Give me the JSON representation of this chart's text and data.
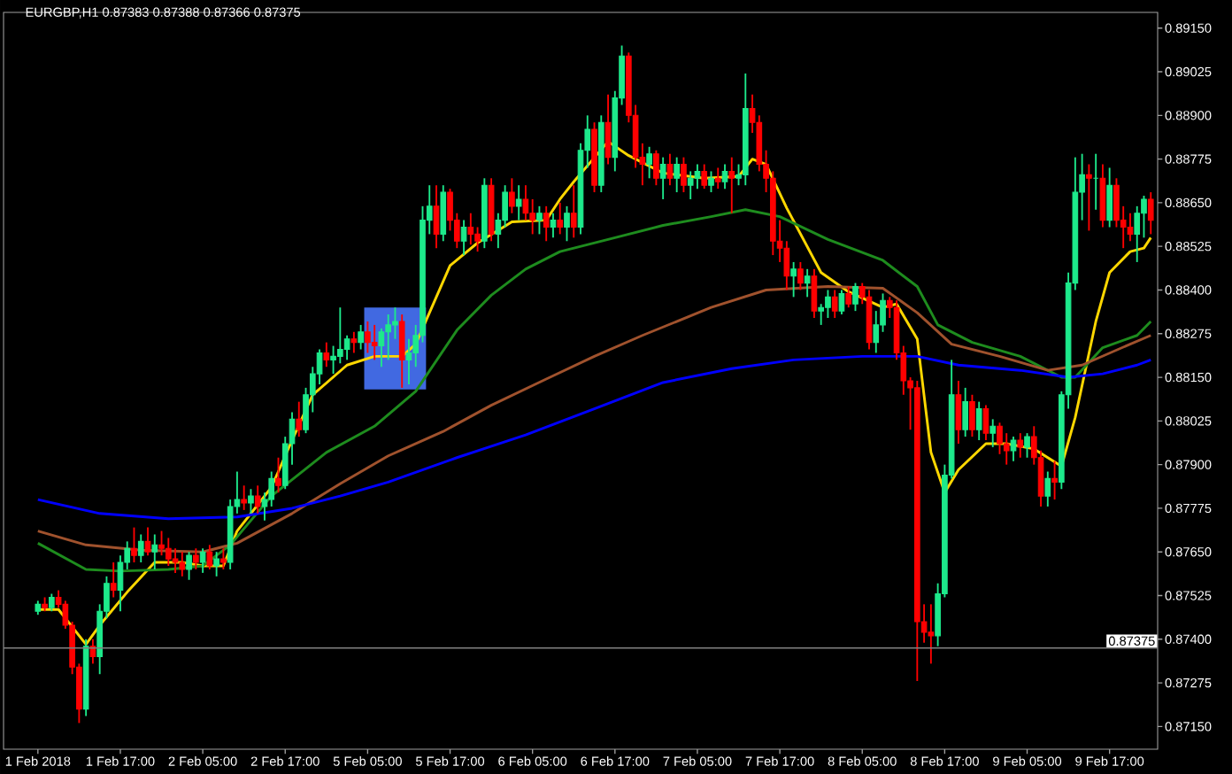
{
  "chart_data": {
    "type": "candlestick",
    "title": "EURGBP,H1  0.87383 0.87388 0.87366 0.87375",
    "categories": [
      "1 Feb 2018",
      null,
      null,
      null,
      null,
      null,
      null,
      null,
      null,
      null,
      null,
      null,
      "1 Feb 17:00",
      null,
      null,
      null,
      null,
      null,
      null,
      null,
      null,
      null,
      null,
      null,
      "2 Feb 05:00",
      null,
      null,
      null,
      null,
      null,
      null,
      null,
      null,
      null,
      null,
      null,
      "2 Feb 17:00",
      null,
      null,
      null,
      null,
      null,
      null,
      null,
      null,
      null,
      null,
      null,
      "5 Feb 05:00",
      null,
      null,
      null,
      null,
      null,
      null,
      null,
      null,
      null,
      null,
      null,
      "5 Feb 17:00",
      null,
      null,
      null,
      null,
      null,
      null,
      null,
      null,
      null,
      null,
      null,
      "6 Feb 05:00",
      null,
      null,
      null,
      null,
      null,
      null,
      null,
      null,
      null,
      null,
      null,
      "6 Feb 17:00",
      null,
      null,
      null,
      null,
      null,
      null,
      null,
      null,
      null,
      null,
      null,
      "7 Feb 05:00",
      null,
      null,
      null,
      null,
      null,
      null,
      null,
      null,
      null,
      null,
      null,
      "7 Feb 17:00",
      null,
      null,
      null,
      null,
      null,
      null,
      null,
      null,
      null,
      null,
      null,
      "8 Feb 05:00",
      null,
      null,
      null,
      null,
      null,
      null,
      null,
      null,
      null,
      null,
      null,
      "8 Feb 17:00",
      null,
      null,
      null,
      null,
      null,
      null,
      null,
      null,
      null,
      null,
      null,
      "9 Feb 05:00",
      null,
      null,
      null,
      null,
      null,
      null,
      null,
      null,
      null,
      null,
      null,
      "9 Feb 17:00",
      null,
      null,
      null,
      null,
      null,
      null
    ],
    "colors": [
      "#1de98b",
      "#ff0000",
      "#1de98b",
      "#ff0000",
      "#ff0000",
      "#ff0000",
      "#ff0000",
      "#1de98b",
      "#ff0000",
      "#1de98b",
      "#1de98b",
      "#ff0000",
      "#1de98b",
      "#1de98b",
      "#ff0000",
      "#1de98b",
      "#ff0000",
      "#1de98b",
      "#ff0000",
      "#ff0000",
      "#ff0000",
      "#ff0000",
      "#1de98b",
      "#ff0000",
      "#1de98b",
      "#ff0000",
      "#1de98b",
      "#ff0000",
      "#1de98b",
      "#1de98b",
      "#ff0000",
      "#1de98b",
      "#ff0000",
      "#1de98b",
      "#1de98b",
      "#ff0000",
      "#1de98b",
      "#1de98b",
      "#ff0000",
      "#1de98b",
      "#1de98b",
      "#1de98b",
      "#ff0000",
      "#1de98b",
      "#1de98b",
      "#1de98b",
      "#ff0000",
      "#1de98b",
      "#ff0000",
      "#ff0000",
      "#1de98b",
      "#1de98b",
      "#1de98b",
      "#ff0000",
      "#1de98b",
      "#1de98b",
      "#1de98b",
      "#1de98b",
      "#ff0000",
      "#1de98b",
      "#ff0000",
      "#ff0000",
      "#1de98b",
      "#ff0000",
      "#ff0000",
      "#1de98b",
      "#ff0000",
      "#1de98b",
      "#1de98b",
      "#ff0000",
      "#1de98b",
      "#ff0000",
      "#ff0000",
      "#1de98b",
      "#ff0000",
      "#1de98b",
      "#ff0000",
      "#1de98b",
      "#ff0000",
      "#1de98b",
      "#1de98b",
      "#ff0000",
      "#1de98b",
      "#ff0000",
      "#1de98b",
      "#1de98b",
      "#ff0000",
      "#ff0000",
      "#ff0000",
      "#1de98b",
      "#ff0000",
      "#1de98b",
      "#ff0000",
      "#1de98b",
      "#ff0000",
      "#1de98b",
      "#1de98b",
      "#ff0000",
      "#1de98b",
      "#ff0000",
      "#1de98b",
      "#ff0000",
      "#1de98b",
      "#1de98b",
      "#ff0000",
      "#ff0000",
      "#ff0000",
      "#ff0000",
      "#ff0000",
      "#ff0000",
      "#1de98b",
      "#ff0000",
      "#1de98b",
      "#ff0000",
      "#1de98b",
      "#1de98b",
      "#ff0000",
      "#1de98b",
      "#ff0000",
      "#1de98b",
      "#ff0000",
      "#ff0000",
      "#1de98b",
      "#1de98b",
      "#ff0000",
      "#ff0000",
      "#ff0000",
      "#ff0000",
      "#ff0000",
      "#ff0000",
      "#ff0000",
      "#1de98b",
      "#1de98b",
      "#1de98b",
      "#ff0000",
      "#1de98b",
      "#ff0000",
      "#1de98b",
      "#ff0000",
      "#1de98b",
      "#ff0000",
      "#ff0000",
      "#1de98b",
      "#ff0000",
      "#1de98b",
      "#ff0000",
      "#ff0000",
      "#1de98b",
      "#ff0000",
      "#1de98b",
      "#1de98b",
      "#1de98b",
      "#1de98b",
      "#ff0000",
      "#1de98b",
      "#ff0000",
      "#1de98b",
      "#ff0000",
      "#ff0000",
      "#ff0000",
      "#1de98b",
      "#1de98b",
      "#ff0000"
    ],
    "ohlc": [
      [
        0.8748,
        0.8751,
        0.8747,
        0.875
      ],
      [
        0.875,
        0.8752,
        0.8748,
        0.8749
      ],
      [
        0.8749,
        0.8753,
        0.8748,
        0.8752
      ],
      [
        0.8752,
        0.8754,
        0.8749,
        0.875
      ],
      [
        0.875,
        0.8751,
        0.8743,
        0.8744
      ],
      [
        0.8744,
        0.8745,
        0.873,
        0.8732
      ],
      [
        0.8732,
        0.8733,
        0.8716,
        0.872
      ],
      [
        0.872,
        0.874,
        0.8718,
        0.8738
      ],
      [
        0.8738,
        0.874,
        0.8733,
        0.8735
      ],
      [
        0.8735,
        0.875,
        0.873,
        0.8748
      ],
      [
        0.8748,
        0.8758,
        0.8746,
        0.8756
      ],
      [
        0.8756,
        0.8762,
        0.8752,
        0.8754
      ],
      [
        0.8754,
        0.8764,
        0.8748,
        0.8762
      ],
      [
        0.8762,
        0.8768,
        0.876,
        0.8766
      ],
      [
        0.8766,
        0.8772,
        0.8762,
        0.8764
      ],
      [
        0.8764,
        0.877,
        0.8762,
        0.8768
      ],
      [
        0.8768,
        0.8772,
        0.8764,
        0.8765
      ],
      [
        0.8765,
        0.877,
        0.876,
        0.8767
      ],
      [
        0.8767,
        0.8771,
        0.8764,
        0.8766
      ],
      [
        0.8766,
        0.8769,
        0.8761,
        0.8763
      ],
      [
        0.8763,
        0.8766,
        0.8759,
        0.8762
      ],
      [
        0.8762,
        0.8765,
        0.8758,
        0.876
      ],
      [
        0.876,
        0.8765,
        0.8757,
        0.8764
      ],
      [
        0.8764,
        0.8766,
        0.876,
        0.8762
      ],
      [
        0.8762,
        0.8766,
        0.8759,
        0.8765
      ],
      [
        0.8765,
        0.8767,
        0.876,
        0.8761
      ],
      [
        0.8761,
        0.8765,
        0.8758,
        0.8763
      ],
      [
        0.8763,
        0.8766,
        0.876,
        0.8762
      ],
      [
        0.8762,
        0.878,
        0.876,
        0.8778
      ],
      [
        0.8778,
        0.8788,
        0.8776,
        0.878
      ],
      [
        0.878,
        0.8784,
        0.8777,
        0.8779
      ],
      [
        0.8779,
        0.8783,
        0.8776,
        0.8781
      ],
      [
        0.8781,
        0.8784,
        0.8776,
        0.8778
      ],
      [
        0.8778,
        0.8782,
        0.8774,
        0.878
      ],
      [
        0.878,
        0.8788,
        0.8778,
        0.8786
      ],
      [
        0.8786,
        0.8792,
        0.8782,
        0.8784
      ],
      [
        0.8784,
        0.8798,
        0.8783,
        0.8796
      ],
      [
        0.8796,
        0.8805,
        0.879,
        0.8803
      ],
      [
        0.8803,
        0.8808,
        0.8798,
        0.88
      ],
      [
        0.88,
        0.8812,
        0.8799,
        0.881
      ],
      [
        0.881,
        0.8818,
        0.8805,
        0.8816
      ],
      [
        0.8816,
        0.8823,
        0.8813,
        0.8822
      ],
      [
        0.8822,
        0.8825,
        0.8818,
        0.882
      ],
      [
        0.882,
        0.8824,
        0.8816,
        0.8821
      ],
      [
        0.8821,
        0.8835,
        0.8819,
        0.8823
      ],
      [
        0.8823,
        0.8827,
        0.882,
        0.8826
      ],
      [
        0.8826,
        0.8828,
        0.8822,
        0.8825
      ],
      [
        0.8825,
        0.883,
        0.8823,
        0.8828
      ],
      [
        0.8828,
        0.8831,
        0.8822,
        0.8825
      ],
      [
        0.8825,
        0.883,
        0.882,
        0.8824
      ],
      [
        0.8824,
        0.8829,
        0.8818,
        0.8828
      ],
      [
        0.8828,
        0.8833,
        0.882,
        0.883
      ],
      [
        0.883,
        0.8835,
        0.8826,
        0.8831
      ],
      [
        0.8831,
        0.8833,
        0.8812,
        0.882
      ],
      [
        0.882,
        0.8826,
        0.8813,
        0.8822
      ],
      [
        0.8822,
        0.883,
        0.8818,
        0.8827
      ],
      [
        0.8827,
        0.8864,
        0.8825,
        0.886
      ],
      [
        0.886,
        0.887,
        0.8856,
        0.8864
      ],
      [
        0.8864,
        0.887,
        0.8852,
        0.8856
      ],
      [
        0.8856,
        0.887,
        0.8854,
        0.8868
      ],
      [
        0.8868,
        0.8869,
        0.8857,
        0.886
      ],
      [
        0.886,
        0.8862,
        0.8852,
        0.8854
      ],
      [
        0.8854,
        0.886,
        0.885,
        0.8858
      ],
      [
        0.8858,
        0.8862,
        0.8853,
        0.8856
      ],
      [
        0.8856,
        0.8858,
        0.8851,
        0.8854
      ],
      [
        0.8854,
        0.8872,
        0.8852,
        0.887
      ],
      [
        0.887,
        0.8872,
        0.8854,
        0.8856
      ],
      [
        0.8856,
        0.8862,
        0.8852,
        0.886
      ],
      [
        0.886,
        0.887,
        0.8858,
        0.8868
      ],
      [
        0.8868,
        0.8872,
        0.8862,
        0.8864
      ],
      [
        0.8864,
        0.887,
        0.886,
        0.8866
      ],
      [
        0.8866,
        0.887,
        0.886,
        0.8862
      ],
      [
        0.8862,
        0.8866,
        0.8856,
        0.886
      ],
      [
        0.886,
        0.8864,
        0.8856,
        0.8862
      ],
      [
        0.8862,
        0.8864,
        0.8854,
        0.8858
      ],
      [
        0.8858,
        0.8862,
        0.8855,
        0.886
      ],
      [
        0.886,
        0.8865,
        0.8856,
        0.8858
      ],
      [
        0.8858,
        0.8864,
        0.8854,
        0.8862
      ],
      [
        0.8862,
        0.887,
        0.8855,
        0.8858
      ],
      [
        0.8858,
        0.8882,
        0.8856,
        0.888
      ],
      [
        0.888,
        0.889,
        0.8875,
        0.8886
      ],
      [
        0.8886,
        0.8888,
        0.8868,
        0.887
      ],
      [
        0.887,
        0.889,
        0.8868,
        0.8888
      ],
      [
        0.8888,
        0.8896,
        0.8876,
        0.8878
      ],
      [
        0.8878,
        0.8897,
        0.8874,
        0.8895
      ],
      [
        0.8895,
        0.891,
        0.8893,
        0.8907
      ],
      [
        0.8907,
        0.8908,
        0.8888,
        0.889
      ],
      [
        0.889,
        0.8893,
        0.8875,
        0.8878
      ],
      [
        0.8878,
        0.8882,
        0.887,
        0.8876
      ],
      [
        0.8876,
        0.8881,
        0.8872,
        0.8879
      ],
      [
        0.8879,
        0.888,
        0.887,
        0.8872
      ],
      [
        0.8872,
        0.8878,
        0.8866,
        0.8876
      ],
      [
        0.8876,
        0.8879,
        0.887,
        0.8872
      ],
      [
        0.8872,
        0.8878,
        0.8868,
        0.8876
      ],
      [
        0.8876,
        0.8878,
        0.8868,
        0.887
      ],
      [
        0.887,
        0.8874,
        0.8866,
        0.8872
      ],
      [
        0.8872,
        0.8876,
        0.8869,
        0.8874
      ],
      [
        0.8874,
        0.8876,
        0.8869,
        0.887
      ],
      [
        0.887,
        0.8874,
        0.8868,
        0.8872
      ],
      [
        0.8872,
        0.8875,
        0.8869,
        0.8871
      ],
      [
        0.8871,
        0.8876,
        0.8869,
        0.8874
      ],
      [
        0.8874,
        0.8878,
        0.8862,
        0.8872
      ],
      [
        0.8872,
        0.8876,
        0.887,
        0.8873
      ],
      [
        0.8873,
        0.8902,
        0.887,
        0.8892
      ],
      [
        0.8892,
        0.8896,
        0.8885,
        0.8888
      ],
      [
        0.8888,
        0.889,
        0.8874,
        0.8876
      ],
      [
        0.8876,
        0.888,
        0.8868,
        0.8872
      ],
      [
        0.8872,
        0.8874,
        0.885,
        0.8854
      ],
      [
        0.8854,
        0.886,
        0.8848,
        0.8852
      ],
      [
        0.8852,
        0.8854,
        0.884,
        0.8844
      ],
      [
        0.8844,
        0.8848,
        0.8838,
        0.8846
      ],
      [
        0.8846,
        0.8848,
        0.884,
        0.8842
      ],
      [
        0.8842,
        0.8846,
        0.8838,
        0.8844
      ],
      [
        0.8844,
        0.8846,
        0.8832,
        0.8834
      ],
      [
        0.8834,
        0.8836,
        0.883,
        0.8835
      ],
      [
        0.8835,
        0.884,
        0.8832,
        0.8838
      ],
      [
        0.8838,
        0.884,
        0.8832,
        0.8834
      ],
      [
        0.8834,
        0.884,
        0.8833,
        0.8839
      ],
      [
        0.8839,
        0.8841,
        0.8835,
        0.8836
      ],
      [
        0.8836,
        0.8842,
        0.8834,
        0.8841
      ],
      [
        0.8841,
        0.8842,
        0.8836,
        0.8838
      ],
      [
        0.8838,
        0.884,
        0.8823,
        0.8825
      ],
      [
        0.8825,
        0.8834,
        0.8822,
        0.883
      ],
      [
        0.883,
        0.8839,
        0.8828,
        0.8837
      ],
      [
        0.8837,
        0.8838,
        0.8832,
        0.8835
      ],
      [
        0.8835,
        0.8837,
        0.882,
        0.8822
      ],
      [
        0.8822,
        0.8824,
        0.881,
        0.8814
      ],
      [
        0.8814,
        0.8815,
        0.88,
        0.8812
      ],
      [
        0.8812,
        0.8814,
        0.8728,
        0.8745
      ],
      [
        0.8745,
        0.875,
        0.8739,
        0.8742
      ],
      [
        0.8742,
        0.875,
        0.8733,
        0.8741
      ],
      [
        0.8741,
        0.8756,
        0.8738,
        0.8753
      ],
      [
        0.8753,
        0.879,
        0.8752,
        0.8787
      ],
      [
        0.8787,
        0.882,
        0.8786,
        0.881
      ],
      [
        0.881,
        0.8814,
        0.8796,
        0.88
      ],
      [
        0.88,
        0.8812,
        0.8798,
        0.8808
      ],
      [
        0.8808,
        0.881,
        0.8798,
        0.88
      ],
      [
        0.88,
        0.8808,
        0.8797,
        0.8806
      ],
      [
        0.8806,
        0.8807,
        0.8797,
        0.8799
      ],
      [
        0.8799,
        0.8803,
        0.8795,
        0.8801
      ],
      [
        0.8801,
        0.8802,
        0.8793,
        0.8796
      ],
      [
        0.8796,
        0.8799,
        0.879,
        0.8794
      ],
      [
        0.8794,
        0.8798,
        0.8791,
        0.8797
      ],
      [
        0.8797,
        0.8799,
        0.8792,
        0.8795
      ],
      [
        0.8795,
        0.8799,
        0.8792,
        0.8798
      ],
      [
        0.8798,
        0.8801,
        0.879,
        0.8792
      ],
      [
        0.8792,
        0.8794,
        0.8778,
        0.8781
      ],
      [
        0.8781,
        0.8788,
        0.8778,
        0.8786
      ],
      [
        0.8786,
        0.8791,
        0.878,
        0.8785
      ],
      [
        0.8785,
        0.8811,
        0.8783,
        0.881
      ],
      [
        0.881,
        0.8845,
        0.8806,
        0.8842
      ],
      [
        0.8842,
        0.8878,
        0.884,
        0.8868
      ],
      [
        0.8868,
        0.8879,
        0.886,
        0.8873
      ],
      [
        0.8873,
        0.8876,
        0.8857,
        0.8872
      ],
      [
        0.8872,
        0.8879,
        0.8863,
        0.8872
      ],
      [
        0.8872,
        0.8876,
        0.8858,
        0.886
      ],
      [
        0.886,
        0.8875,
        0.8858,
        0.887
      ],
      [
        0.887,
        0.8872,
        0.8858,
        0.886
      ],
      [
        0.886,
        0.8864,
        0.8852,
        0.8858
      ],
      [
        0.8858,
        0.8862,
        0.8854,
        0.8856
      ],
      [
        0.8856,
        0.8864,
        0.8848,
        0.8862
      ],
      [
        0.8862,
        0.8867,
        0.8855,
        0.8866
      ],
      [
        0.8866,
        0.8868,
        0.8856,
        0.886
      ]
    ],
    "series": [
      {
        "type": "line",
        "color": "#ffd700",
        "values": [
          0.87485,
          null,
          null,
          0.87485,
          null,
          null,
          null,
          0.87385,
          null,
          0.8744,
          null,
          null,
          null,
          0.87535,
          null,
          null,
          null,
          0.8762,
          null,
          null,
          null,
          0.8762,
          null,
          null,
          0.8761,
          null,
          null,
          0.8761,
          null,
          0.8771,
          null,
          null,
          null,
          null,
          0.87835,
          null,
          null,
          0.8797,
          null,
          null,
          0.881,
          null,
          null,
          null,
          null,
          0.88185,
          null,
          null,
          null,
          0.8821,
          null,
          null,
          null,
          0.8821,
          null,
          0.88245,
          null,
          0.88335,
          null,
          null,
          0.8847,
          null,
          null,
          null,
          0.88535,
          null,
          null,
          null,
          null,
          0.88595,
          null,
          null,
          null,
          null,
          0.886,
          null,
          0.8866,
          null,
          0.8871,
          null,
          null,
          null,
          null,
          0.88825,
          null,
          null,
          0.88785,
          null,
          null,
          null,
          null,
          0.88735,
          null,
          null,
          null,
          null,
          null,
          0.8872,
          null,
          null,
          null,
          null,
          0.88725,
          null,
          0.88775,
          null,
          0.8876,
          null,
          null,
          0.88635,
          null,
          null,
          null,
          null,
          0.8845,
          null,
          null,
          null,
          0.88395,
          null,
          null,
          null,
          null,
          0.8835,
          null,
          0.8836,
          null,
          null,
          0.8826,
          null,
          0.87935,
          null,
          0.8782,
          null,
          0.87885,
          null,
          null,
          null,
          0.8796,
          null,
          null,
          0.8796,
          null,
          null,
          null,
          0.87945,
          null,
          null,
          null,
          0.87895,
          null,
          0.88035,
          null,
          null,
          0.8831,
          null,
          0.8845,
          null,
          null,
          0.8851,
          null,
          0.8852,
          0.8855
        ]
      },
      {
        "type": "line",
        "color": "#1e8c1e",
        "values": [
          0.87675,
          null,
          null,
          null,
          null,
          null,
          null,
          0.876,
          null,
          null,
          null,
          null,
          0.87595,
          null,
          null,
          null,
          null,
          null,
          null,
          0.876,
          null,
          null,
          null,
          null,
          0.8761,
          null,
          null,
          null,
          0.8767,
          null,
          null,
          null,
          null,
          null,
          0.8781,
          null,
          null,
          null,
          null,
          null,
          null,
          null,
          0.87935,
          null,
          null,
          null,
          null,
          null,
          null,
          0.8801,
          null,
          null,
          null,
          null,
          null,
          0.8811,
          null,
          null,
          null,
          null,
          null,
          0.88285,
          null,
          null,
          null,
          null,
          0.88385,
          null,
          null,
          null,
          null,
          0.8846,
          null,
          null,
          null,
          null,
          0.8851,
          null,
          null,
          null,
          null,
          null,
          null,
          0.88545,
          null,
          null,
          null,
          null,
          null,
          null,
          null,
          0.88585,
          null,
          null,
          null,
          null,
          null,
          null,
          0.8861,
          null,
          null,
          null,
          null,
          0.8863,
          null,
          null,
          null,
          null,
          0.8861,
          null,
          null,
          null,
          null,
          null,
          null,
          0.88545,
          null,
          null,
          null,
          null,
          null,
          null,
          null,
          0.88485,
          null,
          null,
          null,
          null,
          0.8841,
          null,
          null,
          0.883,
          null,
          null,
          null,
          null,
          0.8825,
          null,
          null,
          null,
          null,
          null,
          null,
          0.8821,
          null,
          null,
          null,
          null,
          null,
          0.8815,
          null,
          0.8815,
          null,
          null,
          null,
          0.88235,
          null,
          null,
          null,
          null,
          0.8827,
          null,
          0.8831
        ]
      },
      {
        "type": "line",
        "color": "#a0522d",
        "values": [
          0.8771,
          null,
          null,
          null,
          null,
          null,
          null,
          0.8767,
          null,
          null,
          null,
          null,
          null,
          null,
          null,
          0.87655,
          null,
          null,
          null,
          null,
          null,
          null,
          null,
          null,
          0.8765,
          null,
          null,
          null,
          null,
          0.87675,
          null,
          null,
          null,
          null,
          null,
          null,
          null,
          0.8776,
          null,
          null,
          null,
          null,
          null,
          null,
          0.87845,
          null,
          null,
          null,
          null,
          null,
          null,
          0.87925,
          null,
          null,
          null,
          null,
          null,
          null,
          null,
          0.87995,
          null,
          null,
          null,
          null,
          null,
          null,
          0.8807,
          null,
          null,
          null,
          null,
          null,
          null,
          null,
          0.88145,
          null,
          null,
          null,
          null,
          null,
          null,
          0.8821,
          null,
          null,
          null,
          null,
          null,
          null,
          0.8827,
          null,
          null,
          null,
          null,
          null,
          null,
          null,
          null,
          null,
          0.8835,
          null,
          null,
          null,
          null,
          null,
          null,
          null,
          0.884,
          null,
          null,
          null,
          null,
          null,
          null,
          null,
          null,
          0.8841,
          null,
          null,
          null,
          null,
          null,
          null,
          null,
          0.88405,
          null,
          null,
          null,
          null,
          0.88335,
          null,
          null,
          null,
          null,
          0.88245,
          null,
          null,
          null,
          null,
          null,
          null,
          0.8821,
          null,
          null,
          null,
          null,
          null,
          null,
          0.8817,
          null,
          null,
          null,
          null,
          0.88185,
          null,
          null,
          null,
          null,
          null,
          null,
          0.88245,
          null,
          null,
          0.8827
        ]
      },
      {
        "type": "line",
        "color": "#0000ff",
        "values": [
          0.878,
          null,
          null,
          null,
          null,
          null,
          null,
          null,
          null,
          0.8776,
          null,
          null,
          null,
          null,
          null,
          null,
          null,
          null,
          null,
          0.87745,
          null,
          null,
          null,
          null,
          null,
          null,
          null,
          null,
          null,
          0.8775,
          null,
          null,
          null,
          null,
          null,
          null,
          null,
          0.87775,
          null,
          null,
          null,
          null,
          null,
          null,
          0.8781,
          null,
          null,
          null,
          null,
          null,
          null,
          0.8785,
          null,
          null,
          null,
          null,
          null,
          null,
          null,
          null,
          null,
          0.8792,
          null,
          null,
          null,
          null,
          null,
          null,
          null,
          null,
          null,
          0.87985,
          null,
          null,
          null,
          null,
          null,
          null,
          null,
          null,
          null,
          0.8806,
          null,
          null,
          null,
          null,
          null,
          null,
          null,
          null,
          null,
          0.88135,
          null,
          null,
          null,
          null,
          null,
          null,
          null,
          null,
          null,
          0.88175,
          null,
          null,
          null,
          null,
          null,
          null,
          null,
          null,
          0.882,
          null,
          null,
          null,
          null,
          null,
          null,
          null,
          null,
          null,
          0.8821,
          null,
          null,
          null,
          null,
          null,
          null,
          null,
          0.8821,
          null,
          null,
          null,
          null,
          null,
          0.88185,
          null,
          null,
          null,
          null,
          null,
          null,
          null,
          null,
          0.8817,
          null,
          null,
          null,
          null,
          null,
          null,
          0.8815,
          null,
          null,
          null,
          null,
          0.8816,
          null,
          null,
          null,
          null,
          0.88185,
          null,
          0.882
        ]
      }
    ],
    "marker": "none",
    "line_style": "solid",
    "ylim": [
      0.87085,
      0.89195
    ],
    "yticks": [
      {
        "value": 0.8715,
        "label": "0.87150"
      },
      {
        "value": 0.87275,
        "label": "0.87275"
      },
      {
        "value": 0.874,
        "label": "0.87400"
      },
      {
        "value": 0.87525,
        "label": "0.87525"
      },
      {
        "value": 0.8765,
        "label": "0.87650"
      },
      {
        "value": 0.87775,
        "label": "0.87775"
      },
      {
        "value": 0.879,
        "label": "0.87900"
      },
      {
        "value": 0.88025,
        "label": "0.88025"
      },
      {
        "value": 0.8815,
        "label": "0.88150"
      },
      {
        "value": 0.88275,
        "label": "0.88275"
      },
      {
        "value": 0.884,
        "label": "0.88400"
      },
      {
        "value": 0.88525,
        "label": "0.88525"
      },
      {
        "value": 0.8865,
        "label": "0.88650"
      },
      {
        "value": 0.88775,
        "label": "0.88775"
      },
      {
        "value": 0.889,
        "label": "0.88900"
      },
      {
        "value": 0.89025,
        "label": "0.89025"
      },
      {
        "value": 0.8915,
        "label": "0.89150"
      }
    ],
    "ref_lines": [
      {
        "axis": "y",
        "value": 0.87375,
        "label": "0.87375",
        "color": "#808080",
        "line_style": "solid"
      }
    ]
  }
}
